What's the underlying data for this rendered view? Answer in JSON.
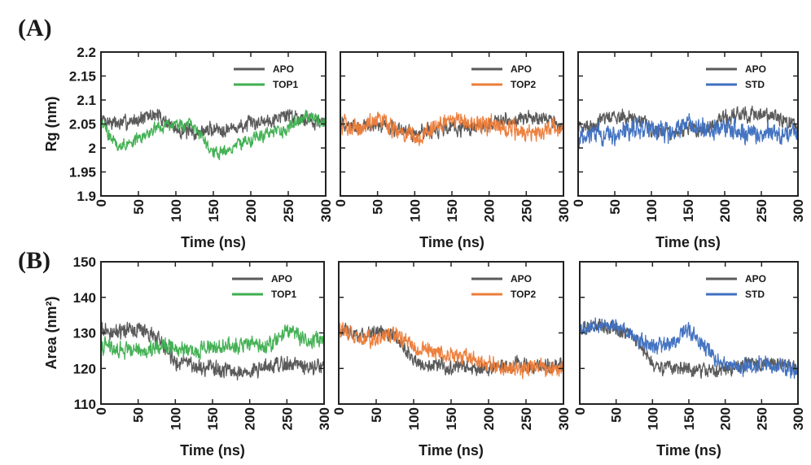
{
  "figure": {
    "label_a": "(A)",
    "label_b": "(B)"
  },
  "colors": {
    "APO": "#5a5a5a",
    "TOP1": "#3fae4f",
    "TOP2": "#ec7d3a",
    "STD": "#3f6fc0"
  },
  "chart_data": [
    {
      "id": "rg_top1",
      "type": "line",
      "row": "A",
      "xlabel": "Time (ns)",
      "ylabel": "Rg (nm)",
      "xlim": [
        0,
        300
      ],
      "ylim": [
        1.9,
        2.2
      ],
      "xticks": [
        0,
        50,
        100,
        150,
        200,
        250,
        300
      ],
      "yticks": [
        1.9,
        1.95,
        2,
        2.05,
        2.1,
        2.15,
        2.2
      ],
      "ytick_labels": [
        "1.9",
        "1.95",
        "2",
        "2.05",
        "2.1",
        "2.15",
        "2.2"
      ],
      "legend": [
        "APO",
        "TOP1"
      ],
      "legend_position": "top-right",
      "series": [
        {
          "name": "APO",
          "x": [
            0,
            25,
            50,
            75,
            100,
            125,
            150,
            175,
            200,
            225,
            250,
            275,
            300
          ],
          "y": [
            2.06,
            2.05,
            2.06,
            2.07,
            2.04,
            2.03,
            2.04,
            2.04,
            2.05,
            2.06,
            2.07,
            2.06,
            2.05
          ],
          "noise": 0.018
        },
        {
          "name": "TOP1",
          "x": [
            0,
            25,
            50,
            75,
            100,
            125,
            150,
            175,
            200,
            225,
            250,
            275,
            300
          ],
          "y": [
            2.05,
            2.0,
            2.02,
            2.04,
            2.05,
            2.04,
            1.99,
            2.0,
            2.02,
            2.03,
            2.04,
            2.07,
            2.05
          ],
          "noise": 0.016
        }
      ]
    },
    {
      "id": "rg_top2",
      "type": "line",
      "row": "A",
      "xlabel": "Time (ns)",
      "ylabel": "",
      "xlim": [
        0,
        300
      ],
      "ylim": [
        1.9,
        2.2
      ],
      "xticks": [
        0,
        50,
        100,
        150,
        200,
        250,
        300
      ],
      "yticks": [
        1.9,
        1.95,
        2,
        2.05,
        2.1,
        2.15,
        2.2
      ],
      "legend": [
        "APO",
        "TOP2"
      ],
      "legend_position": "top-right",
      "series": [
        {
          "name": "APO",
          "x": [
            0,
            25,
            50,
            75,
            100,
            125,
            150,
            175,
            200,
            225,
            250,
            275,
            300
          ],
          "y": [
            2.05,
            2.04,
            2.05,
            2.04,
            2.03,
            2.04,
            2.04,
            2.04,
            2.05,
            2.06,
            2.06,
            2.06,
            2.04
          ],
          "noise": 0.018
        },
        {
          "name": "TOP2",
          "x": [
            0,
            25,
            50,
            75,
            100,
            125,
            150,
            175,
            200,
            225,
            250,
            275,
            300
          ],
          "y": [
            2.05,
            2.04,
            2.06,
            2.04,
            2.02,
            2.04,
            2.06,
            2.05,
            2.05,
            2.04,
            2.03,
            2.04,
            2.04
          ],
          "noise": 0.022
        }
      ]
    },
    {
      "id": "rg_std",
      "type": "line",
      "row": "A",
      "xlabel": "Time (ns)",
      "ylabel": "",
      "xlim": [
        0,
        300
      ],
      "ylim": [
        1.9,
        2.2
      ],
      "xticks": [
        0,
        50,
        100,
        150,
        200,
        250,
        300
      ],
      "yticks": [
        1.9,
        1.95,
        2,
        2.05,
        2.1,
        2.15,
        2.2
      ],
      "legend": [
        "APO",
        "STD"
      ],
      "legend_position": "top-right",
      "series": [
        {
          "name": "APO",
          "x": [
            0,
            25,
            50,
            75,
            100,
            125,
            150,
            175,
            200,
            225,
            250,
            275,
            300
          ],
          "y": [
            2.04,
            2.05,
            2.07,
            2.06,
            2.04,
            2.03,
            2.04,
            2.04,
            2.06,
            2.07,
            2.07,
            2.06,
            2.04
          ],
          "noise": 0.018
        },
        {
          "name": "STD",
          "x": [
            0,
            25,
            50,
            75,
            100,
            125,
            150,
            175,
            200,
            225,
            250,
            275,
            300
          ],
          "y": [
            2.02,
            2.03,
            2.03,
            2.04,
            2.04,
            2.03,
            2.05,
            2.04,
            2.04,
            2.03,
            2.03,
            2.03,
            2.03
          ],
          "noise": 0.024
        }
      ]
    },
    {
      "id": "area_top1",
      "type": "line",
      "row": "B",
      "xlabel": "Time (ns)",
      "ylabel": "Area (nm²)",
      "xlim": [
        0,
        300
      ],
      "ylim": [
        110,
        150
      ],
      "xticks": [
        0,
        50,
        100,
        150,
        200,
        250,
        300
      ],
      "yticks": [
        110,
        120,
        130,
        140,
        150
      ],
      "ytick_labels": [
        "110",
        "120",
        "130",
        "140",
        "150"
      ],
      "legend": [
        "APO",
        "TOP1"
      ],
      "legend_position": "top-right",
      "series": [
        {
          "name": "APO",
          "x": [
            0,
            25,
            50,
            75,
            100,
            125,
            150,
            175,
            200,
            225,
            250,
            275,
            300
          ],
          "y": [
            131,
            130,
            131,
            129,
            122,
            121,
            120,
            119,
            119,
            121,
            121,
            121,
            120
          ],
          "noise": 2.6
        },
        {
          "name": "TOP1",
          "x": [
            0,
            25,
            50,
            75,
            100,
            125,
            150,
            175,
            200,
            225,
            250,
            275,
            300
          ],
          "y": [
            127,
            125,
            125,
            126,
            126,
            125,
            126,
            126,
            127,
            126,
            131,
            128,
            128
          ],
          "noise": 2.6
        }
      ]
    },
    {
      "id": "area_top2",
      "type": "line",
      "row": "B",
      "xlabel": "Time (ns)",
      "ylabel": "",
      "xlim": [
        0,
        300
      ],
      "ylim": [
        110,
        150
      ],
      "xticks": [
        0,
        50,
        100,
        150,
        200,
        250,
        300
      ],
      "yticks": [
        110,
        120,
        130,
        140,
        150
      ],
      "legend": [
        "APO",
        "TOP2"
      ],
      "legend_position": "top-right",
      "series": [
        {
          "name": "APO",
          "x": [
            0,
            25,
            50,
            75,
            100,
            125,
            150,
            175,
            200,
            225,
            250,
            275,
            300
          ],
          "y": [
            131,
            129,
            130,
            129,
            122,
            121,
            120,
            120,
            120,
            121,
            121,
            121,
            121
          ],
          "noise": 2.4
        },
        {
          "name": "TOP2",
          "x": [
            0,
            25,
            50,
            75,
            100,
            125,
            150,
            175,
            200,
            225,
            250,
            275,
            300
          ],
          "y": [
            131,
            129,
            128,
            130,
            126,
            125,
            124,
            123,
            121,
            120,
            120,
            120,
            120
          ],
          "noise": 2.6
        }
      ]
    },
    {
      "id": "area_std",
      "type": "line",
      "row": "B",
      "xlabel": "Time (ns)",
      "ylabel": "",
      "xlim": [
        0,
        300
      ],
      "ylim": [
        110,
        150
      ],
      "xticks": [
        0,
        50,
        100,
        150,
        200,
        250,
        300
      ],
      "yticks": [
        110,
        120,
        130,
        140,
        150
      ],
      "legend": [
        "APO",
        "STD"
      ],
      "legend_position": "top-right",
      "series": [
        {
          "name": "APO",
          "x": [
            0,
            25,
            50,
            75,
            100,
            125,
            150,
            175,
            200,
            225,
            250,
            275,
            300
          ],
          "y": [
            131,
            132,
            131,
            129,
            121,
            120,
            120,
            119,
            120,
            121,
            121,
            121,
            120
          ],
          "noise": 2.4
        },
        {
          "name": "STD",
          "x": [
            0,
            25,
            50,
            75,
            100,
            125,
            150,
            175,
            200,
            225,
            250,
            275,
            300
          ],
          "y": [
            130,
            132,
            132,
            129,
            126,
            127,
            131,
            125,
            121,
            120,
            121,
            121,
            119
          ],
          "noise": 2.6
        }
      ]
    }
  ]
}
